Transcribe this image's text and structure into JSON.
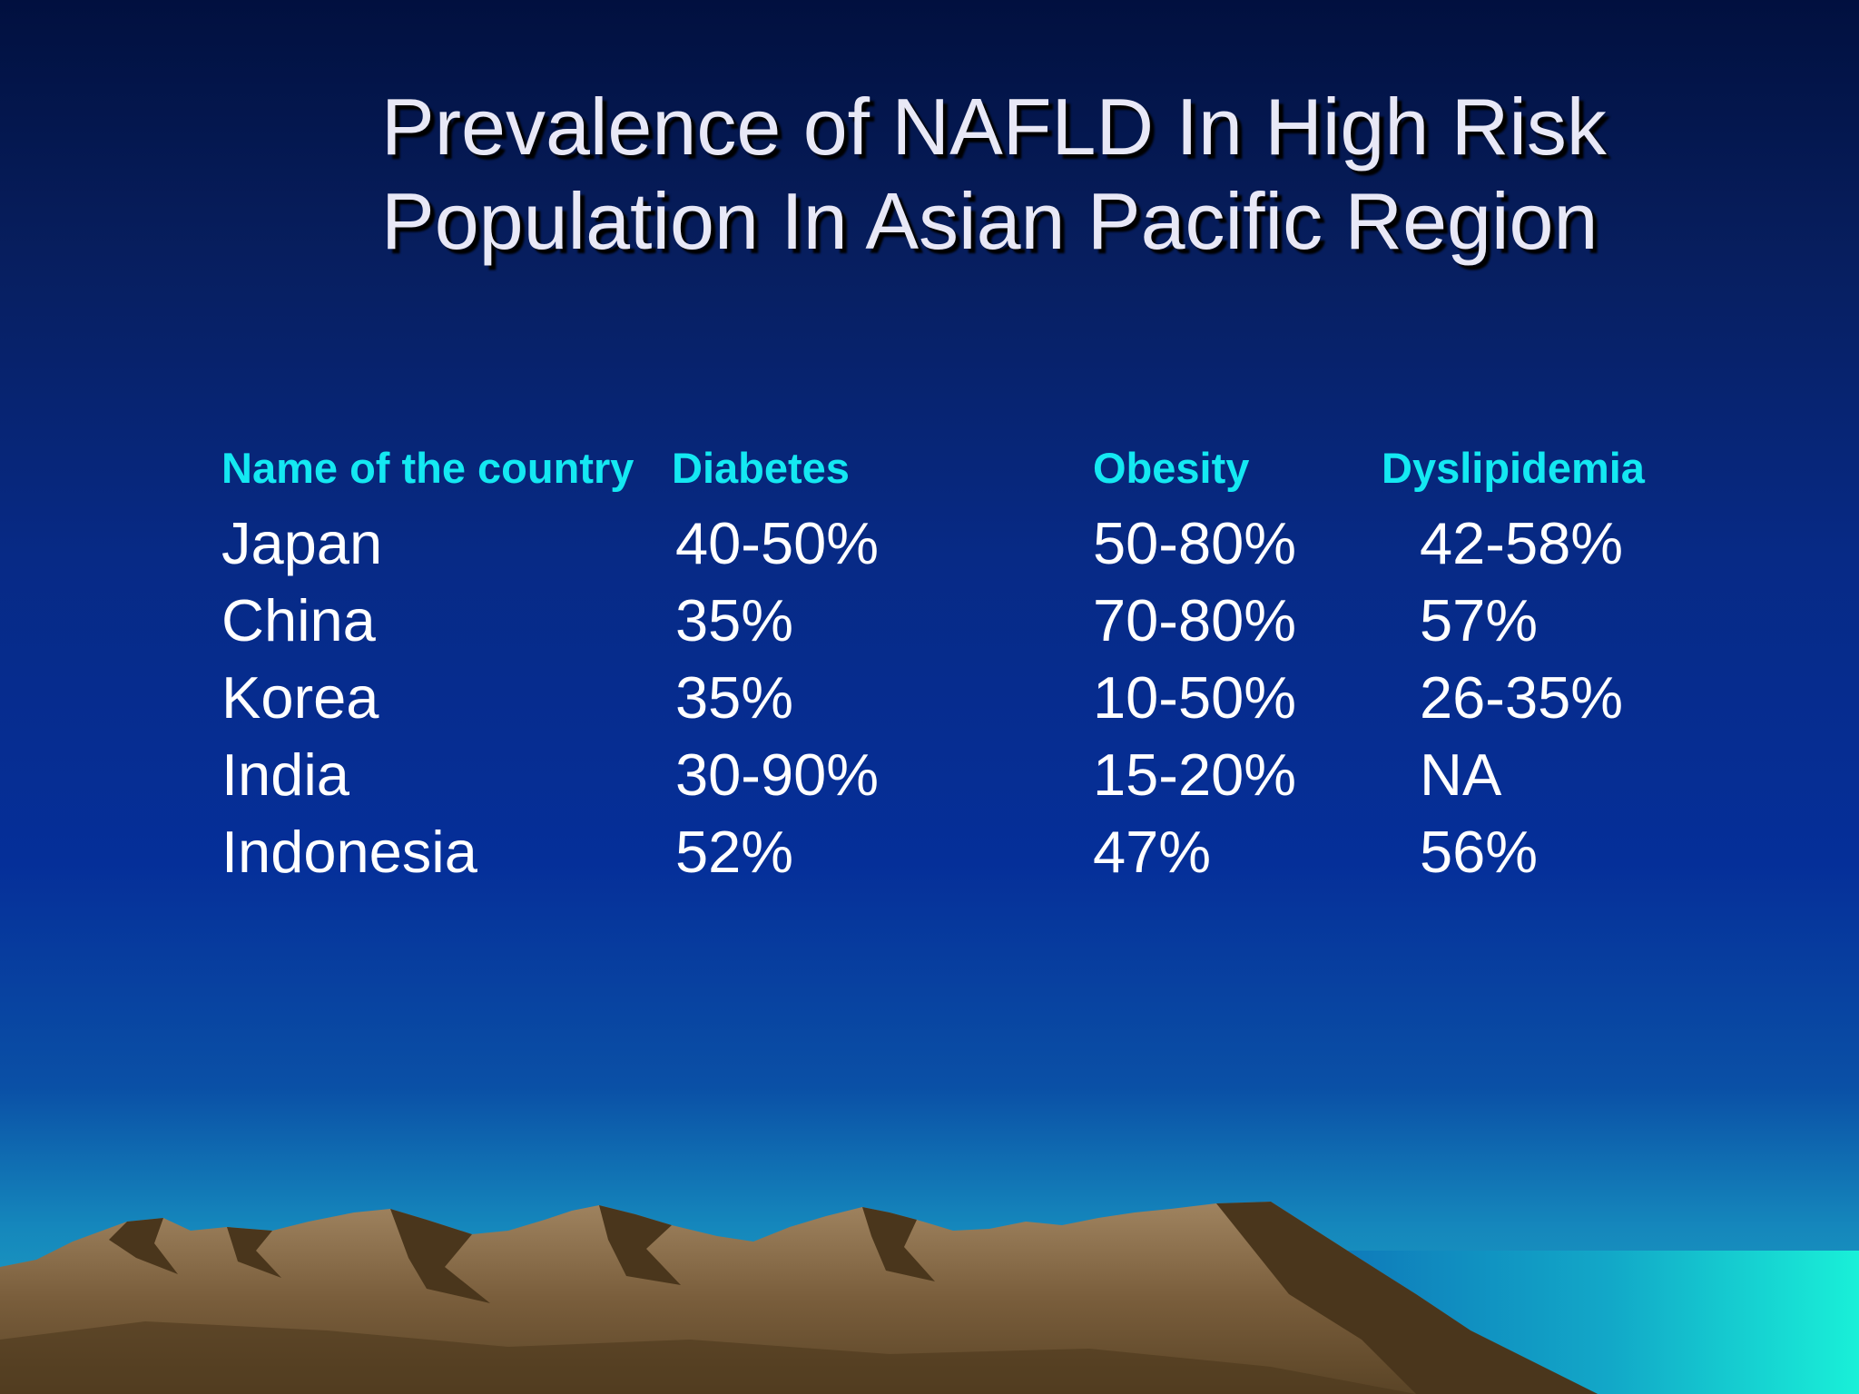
{
  "slide": {
    "title_line1": "Prevalence of NAFLD In High Risk",
    "title_line2": "Population In Asian Pacific Region"
  },
  "table": {
    "headers": [
      "Name of the country",
      "Diabetes",
      "Obesity",
      "Dyslipidemia"
    ],
    "rows": [
      {
        "country": "Japan",
        "diabetes": "40-50%",
        "obesity": "50-80%",
        "dyslipidemia": "42-58%"
      },
      {
        "country": "China",
        "diabetes": "35%",
        "obesity": "70-80%",
        "dyslipidemia": "57%"
      },
      {
        "country": "Korea",
        "diabetes": "35%",
        "obesity": "10-50%",
        "dyslipidemia": "26-35%"
      },
      {
        "country": "India",
        "diabetes": "30-90%",
        "obesity": "15-20%",
        "dyslipidemia": "NA"
      },
      {
        "country": "Indonesia",
        "diabetes": "52%",
        "obesity": "47%",
        "dyslipidemia": "56%"
      }
    ]
  },
  "colors": {
    "title_text": "#e8e8f6",
    "header_text": "#14e8f2",
    "cell_text": "#ffffff",
    "sky_top": "#01103f",
    "sky_bottom": "#22aec6",
    "mountain_light": "#8a6c48",
    "mountain_dark": "#4a361c",
    "sea": "#19d8d8"
  }
}
